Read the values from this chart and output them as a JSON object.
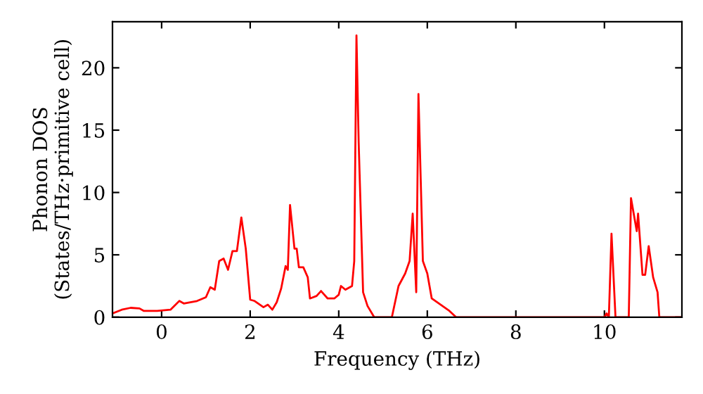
{
  "chart_data": {
    "type": "line",
    "xlabel": "Frequency (THz)",
    "ylabel": "Phonon DOS\n(States/THz·primitive cell)",
    "xlim": [
      -1.11,
      11.75
    ],
    "ylim": [
      0,
      23.7
    ],
    "xticks": [
      0,
      2,
      4,
      6,
      8,
      10
    ],
    "yticks": [
      0,
      5,
      10,
      15,
      20
    ],
    "grid": false,
    "legend": false,
    "marker": "none",
    "line_style": "solid",
    "series": [
      {
        "color": "#ff0000",
        "x": [
          -1.11,
          -0.9,
          -0.7,
          -0.5,
          -0.4,
          -0.1,
          0.2,
          0.4,
          0.5,
          0.8,
          1.0,
          1.1,
          1.2,
          1.3,
          1.4,
          1.5,
          1.6,
          1.7,
          1.8,
          1.9,
          2.0,
          2.1,
          2.3,
          2.4,
          2.5,
          2.6,
          2.7,
          2.8,
          2.85,
          2.9,
          3.0,
          3.05,
          3.1,
          3.2,
          3.3,
          3.35,
          3.5,
          3.6,
          3.75,
          3.9,
          4.0,
          4.05,
          4.15,
          4.3,
          4.35,
          4.4,
          4.45,
          4.55,
          4.65,
          4.8,
          5.2,
          5.35,
          5.5,
          5.6,
          5.67,
          5.75,
          5.8,
          5.9,
          6.0,
          6.1,
          6.5,
          6.65,
          10.0,
          10.05,
          10.1,
          10.16,
          10.25,
          10.55,
          10.6,
          10.73,
          10.76,
          10.86,
          10.92,
          11.0,
          11.1,
          11.2,
          11.24,
          11.75
        ],
        "values": [
          0.3,
          0.6,
          0.75,
          0.7,
          0.5,
          0.5,
          0.6,
          1.3,
          1.1,
          1.3,
          1.6,
          2.4,
          2.2,
          4.5,
          4.7,
          3.8,
          5.3,
          5.3,
          8.0,
          5.5,
          1.4,
          1.3,
          0.8,
          1.0,
          0.6,
          1.2,
          2.3,
          4.1,
          3.8,
          9.0,
          5.5,
          5.5,
          4.0,
          4.0,
          3.2,
          1.5,
          1.7,
          2.1,
          1.5,
          1.5,
          1.8,
          2.5,
          2.2,
          2.5,
          4.5,
          22.6,
          14.0,
          2.0,
          0.9,
          0,
          0,
          2.5,
          3.5,
          4.5,
          8.3,
          2.0,
          17.9,
          4.5,
          3.5,
          1.5,
          0.5,
          0,
          0,
          0.3,
          0,
          6.7,
          0,
          0,
          9.55,
          6.9,
          8.3,
          3.4,
          3.4,
          5.7,
          3.2,
          2.0,
          0,
          0
        ]
      }
    ]
  }
}
